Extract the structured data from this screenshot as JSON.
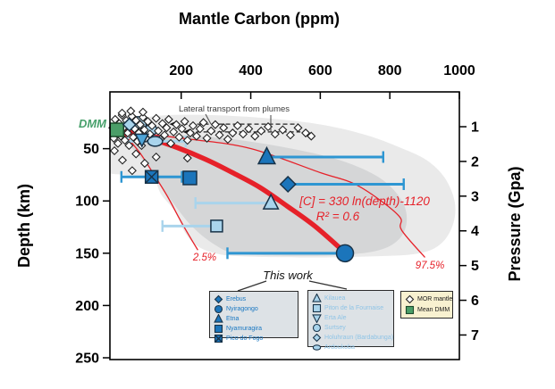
{
  "figure": {
    "title": "Mantle Carbon (ppm)"
  },
  "axes": {
    "x_top": {
      "label": "Mantle Carbon (ppm)",
      "ticks": [
        200,
        400,
        600,
        800,
        1000
      ],
      "range_ppm": [
        -5,
        1000
      ]
    },
    "y_left": {
      "label": "Depth (km)",
      "ticks": [
        50,
        100,
        150,
        200,
        250
      ],
      "range_km": [
        -4.3,
        251.7
      ]
    },
    "y_right": {
      "label": "Pressure (Gpa)",
      "ticks": [
        1,
        2,
        3,
        4,
        5,
        6,
        7
      ]
    }
  },
  "annotations": {
    "dmm": "DMM",
    "lateral": "Lateral transport from plumes",
    "equation": "[C] = 330 ln(depth)-1120",
    "r_squared": "R² = 0.6",
    "lower_bound": "2.5%",
    "upper_bound": "97.5%"
  },
  "legends": {
    "this_work_label": "This work",
    "group_a": {
      "items": [
        {
          "label": "Erebus",
          "symbol": "diamond"
        },
        {
          "label": "Nyiragongo",
          "symbol": "circle"
        },
        {
          "label": "Etna",
          "symbol": "triangle-up"
        },
        {
          "label": "Nyamuragira",
          "symbol": "square"
        },
        {
          "label": "Pico do Fogo",
          "symbol": "square-x"
        }
      ]
    },
    "group_b": {
      "items": [
        {
          "label": "Kilauea",
          "symbol": "triangle-up"
        },
        {
          "label": "Piton de la Fournaise",
          "symbol": "square"
        },
        {
          "label": "Erta Ale",
          "symbol": "triangle-down"
        },
        {
          "label": "Surtsey",
          "symbol": "circle"
        },
        {
          "label": "Holuhraun (Bardabunga)",
          "symbol": "diamond"
        },
        {
          "label": "Ardoukoba",
          "symbol": "ellipse"
        }
      ]
    },
    "group_c": {
      "items": [
        {
          "label": "MOR mantle",
          "symbol": "diamond",
          "variant": "mor"
        },
        {
          "label": "Mean DMM",
          "symbol": "square",
          "variant": "dmm"
        }
      ]
    }
  },
  "colors": {
    "red": "#E62129",
    "dark_blue": "#1B75BB",
    "mid_blue": "#4FA5D8",
    "light_blue": "#A9D4EC",
    "bar_dark": "#2E96D2",
    "bar_light": "#A9D4EC",
    "green": "#4B9E68",
    "annotation_gray": "#444444",
    "field_gray": "#D8D8D8",
    "legend_bg": "#DDE2E6",
    "mor_legend_bg": "#F8F1D0"
  },
  "chart_data": {
    "type": "scatter",
    "x_unit": "ppm carbon",
    "y_unit": "km depth",
    "series": [
      {
        "name": "Erebus",
        "symbol": "diamond",
        "tone": "dark",
        "size": 17,
        "points": [
          {
            "c": 507,
            "d": 84,
            "xerr": [
              507,
              840
            ]
          }
        ]
      },
      {
        "name": "Nyiragongo",
        "symbol": "circle",
        "tone": "dark",
        "size": 19,
        "points": [
          {
            "c": 671,
            "d": 150,
            "xerr": [
              333,
              671
            ]
          }
        ]
      },
      {
        "name": "Etna",
        "symbol": "triangle-up",
        "tone": "dark",
        "size": 17,
        "points": [
          {
            "c": 446,
            "d": 58,
            "xerr": [
              446,
              781
            ]
          }
        ]
      },
      {
        "name": "Nyamuragira",
        "symbol": "square",
        "tone": "dark",
        "size": 15,
        "points": [
          {
            "c": 225,
            "d": 78
          }
        ]
      },
      {
        "name": "Pico do Fogo",
        "symbol": "square-x",
        "tone": "dark",
        "size": 14,
        "points": [
          {
            "c": 115,
            "d": 77,
            "xerr": [
              28,
              202
            ]
          }
        ]
      },
      {
        "name": "Kilauea",
        "symbol": "triangle-up",
        "tone": "light",
        "size": 15,
        "points": [
          {
            "c": 458,
            "d": 102,
            "xerr": [
              241,
              458
            ]
          }
        ]
      },
      {
        "name": "Piton de la Fournaise",
        "symbol": "square",
        "tone": "light",
        "size": 13,
        "points": [
          {
            "c": 302,
            "d": 124,
            "xerr": [
              146,
              302
            ]
          },
          {
            "c": 82,
            "d": 25,
            "layer": "under"
          }
        ]
      },
      {
        "name": "Erta Ale",
        "symbol": "triangle-down",
        "tone": "mid",
        "size": 13,
        "points": [
          {
            "c": 87,
            "d": 41
          }
        ]
      },
      {
        "name": "Surtsey",
        "symbol": "circle",
        "tone": "light",
        "size": 13,
        "points": [
          {
            "c": 113,
            "d": 32,
            "layer": "under"
          }
        ]
      },
      {
        "name": "Holuhraun (Bardabunga)",
        "symbol": "diamond",
        "tone": "light",
        "size": 14,
        "points": [
          {
            "c": 51,
            "d": 27
          }
        ]
      },
      {
        "name": "Ardoukoba",
        "symbol": "ellipse",
        "tone": "light",
        "size": 16,
        "points": [
          {
            "c": 125,
            "d": 43,
            "xerr": [
              46,
              213
            ]
          }
        ]
      }
    ],
    "mor_mantle": {
      "label": "MOR mantle",
      "points": [
        [
          3,
          30
        ],
        [
          6,
          40
        ],
        [
          10,
          22
        ],
        [
          14,
          34
        ],
        [
          18,
          45
        ],
        [
          22,
          26
        ],
        [
          26,
          38
        ],
        [
          30,
          18
        ],
        [
          34,
          30
        ],
        [
          38,
          42
        ],
        [
          42,
          23
        ],
        [
          46,
          35
        ],
        [
          50,
          47
        ],
        [
          54,
          27
        ],
        [
          58,
          19
        ],
        [
          62,
          39
        ],
        [
          66,
          31
        ],
        [
          70,
          23
        ],
        [
          74,
          43
        ],
        [
          78,
          35
        ],
        [
          82,
          27
        ],
        [
          86,
          47
        ],
        [
          90,
          20
        ],
        [
          94,
          32
        ],
        [
          98,
          40
        ],
        [
          104,
          24
        ],
        [
          110,
          36
        ],
        [
          116,
          28
        ],
        [
          122,
          44
        ],
        [
          128,
          21
        ],
        [
          134,
          33
        ],
        [
          140,
          41
        ],
        [
          146,
          26
        ],
        [
          152,
          37
        ],
        [
          158,
          30
        ],
        [
          164,
          22
        ],
        [
          170,
          45
        ],
        [
          178,
          34
        ],
        [
          186,
          27
        ],
        [
          194,
          39
        ],
        [
          202,
          31
        ],
        [
          210,
          24
        ],
        [
          218,
          42
        ],
        [
          226,
          35
        ],
        [
          234,
          28
        ],
        [
          244,
          38
        ],
        [
          254,
          31
        ],
        [
          264,
          25
        ],
        [
          274,
          40
        ],
        [
          286,
          33
        ],
        [
          298,
          27
        ],
        [
          310,
          37
        ],
        [
          322,
          30
        ],
        [
          334,
          41
        ],
        [
          348,
          35
        ],
        [
          362,
          28
        ],
        [
          378,
          36
        ],
        [
          394,
          31
        ],
        [
          412,
          38
        ],
        [
          430,
          33
        ],
        [
          450,
          29
        ],
        [
          470,
          36
        ],
        [
          492,
          32
        ],
        [
          514,
          37
        ],
        [
          536,
          30
        ],
        [
          558,
          35
        ],
        [
          574,
          38
        ],
        [
          31,
          61
        ],
        [
          59,
          71
        ],
        [
          95,
          64
        ],
        [
          128,
          58
        ],
        [
          218,
          59
        ],
        [
          8,
          52
        ],
        [
          70,
          55
        ],
        [
          30,
          16
        ],
        [
          55,
          14
        ],
        [
          90,
          15
        ]
      ]
    },
    "mean_dmm": {
      "label": "Mean DMM",
      "c": 15,
      "d": 32
    },
    "regression": {
      "equation": "[C] = 330 ln(depth)-1120",
      "r2": 0.6,
      "points": [
        [
          28,
          32
        ],
        [
          109,
          40
        ],
        [
          189,
          49
        ],
        [
          269,
          60
        ],
        [
          348,
          73
        ],
        [
          426,
          87
        ],
        [
          505,
          105
        ],
        [
          584,
          124
        ],
        [
          663,
          147
        ]
      ]
    },
    "bounds": {
      "lower_label": "2.5%",
      "lower": [
        [
          36,
          36
        ],
        [
          81,
          54
        ],
        [
          122,
          75
        ],
        [
          161,
          96
        ],
        [
          195,
          117
        ],
        [
          226,
          135
        ],
        [
          248,
          147
        ]
      ],
      "upper_label": "97.5%",
      "upper": [
        [
          41,
          34
        ],
        [
          228,
          41
        ],
        [
          401,
          50
        ],
        [
          601,
          73
        ],
        [
          694,
          83
        ],
        [
          771,
          99
        ],
        [
          830,
          116
        ],
        [
          834,
          128
        ],
        [
          901,
          154
        ]
      ]
    },
    "field_outer": [
      [
        -3,
        38
      ],
      [
        15,
        29
      ],
      [
        67,
        22
      ],
      [
        156,
        18
      ],
      [
        297,
        18
      ],
      [
        451,
        21
      ],
      [
        604,
        27
      ],
      [
        732,
        37
      ],
      [
        830,
        49
      ],
      [
        906,
        61
      ],
      [
        958,
        78
      ],
      [
        986,
        100
      ],
      [
        983,
        121
      ],
      [
        950,
        140
      ],
      [
        886,
        150
      ],
      [
        758,
        153
      ],
      [
        553,
        154
      ],
      [
        374,
        153
      ],
      [
        297,
        150
      ],
      [
        241,
        142
      ],
      [
        207,
        128
      ],
      [
        182,
        110
      ],
      [
        143,
        94
      ],
      [
        118,
        78
      ],
      [
        67,
        76
      ],
      [
        -3,
        74
      ]
    ],
    "field_inner": [
      [
        10,
        34
      ],
      [
        143,
        36
      ],
      [
        323,
        40
      ],
      [
        502,
        49
      ],
      [
        656,
        61
      ],
      [
        771,
        78
      ],
      [
        835,
        100
      ],
      [
        848,
        121
      ],
      [
        822,
        138
      ],
      [
        758,
        148
      ],
      [
        630,
        152
      ],
      [
        451,
        152
      ],
      [
        353,
        150
      ],
      [
        297,
        142
      ],
      [
        233,
        125
      ],
      [
        177,
        102
      ],
      [
        123,
        76
      ],
      [
        74,
        55
      ],
      [
        36,
        43
      ]
    ],
    "lateral_lines": [
      {
        "c0": 184,
        "c1": 535,
        "d": 26.5
      },
      {
        "c0": 223,
        "c1": 543,
        "d": 34
      }
    ]
  }
}
